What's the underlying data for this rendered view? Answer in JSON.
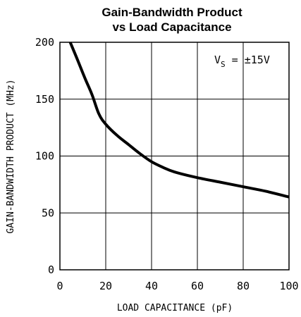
{
  "chart_data": {
    "type": "line",
    "title_line1": "Gain-Bandwidth Product",
    "title_line2": "vs Load Capacitance",
    "xlabel": "LOAD CAPACITANCE (pF)",
    "ylabel": "GAIN-BANDWIDTH PRODUCT (MHz)",
    "xlim": [
      0,
      100
    ],
    "ylim": [
      0,
      200
    ],
    "x_ticks": [
      0,
      20,
      40,
      60,
      80,
      100
    ],
    "y_ticks": [
      0,
      50,
      100,
      150,
      200
    ],
    "x_tick_labels": [
      "0",
      "20",
      "40",
      "60",
      "80",
      "100"
    ],
    "y_tick_labels": [
      "0",
      "50",
      "100",
      "150",
      "200"
    ],
    "grid": true,
    "annotation": {
      "main": "V",
      "subscript": "S",
      "rest": " = ±15V",
      "placement": "top-right"
    },
    "series": [
      {
        "x": [
          4.5,
          8,
          11,
          14,
          17,
          20,
          25,
          30,
          35,
          40,
          45,
          50,
          60,
          70,
          80,
          90,
          100
        ],
        "y": [
          200,
          183,
          168,
          154,
          137,
          128,
          118,
          110,
          102,
          95,
          90,
          86,
          81,
          77,
          73,
          69,
          64
        ]
      }
    ]
  },
  "colors": {
    "line": "#000000",
    "grid": "#000000",
    "background": "#ffffff"
  }
}
